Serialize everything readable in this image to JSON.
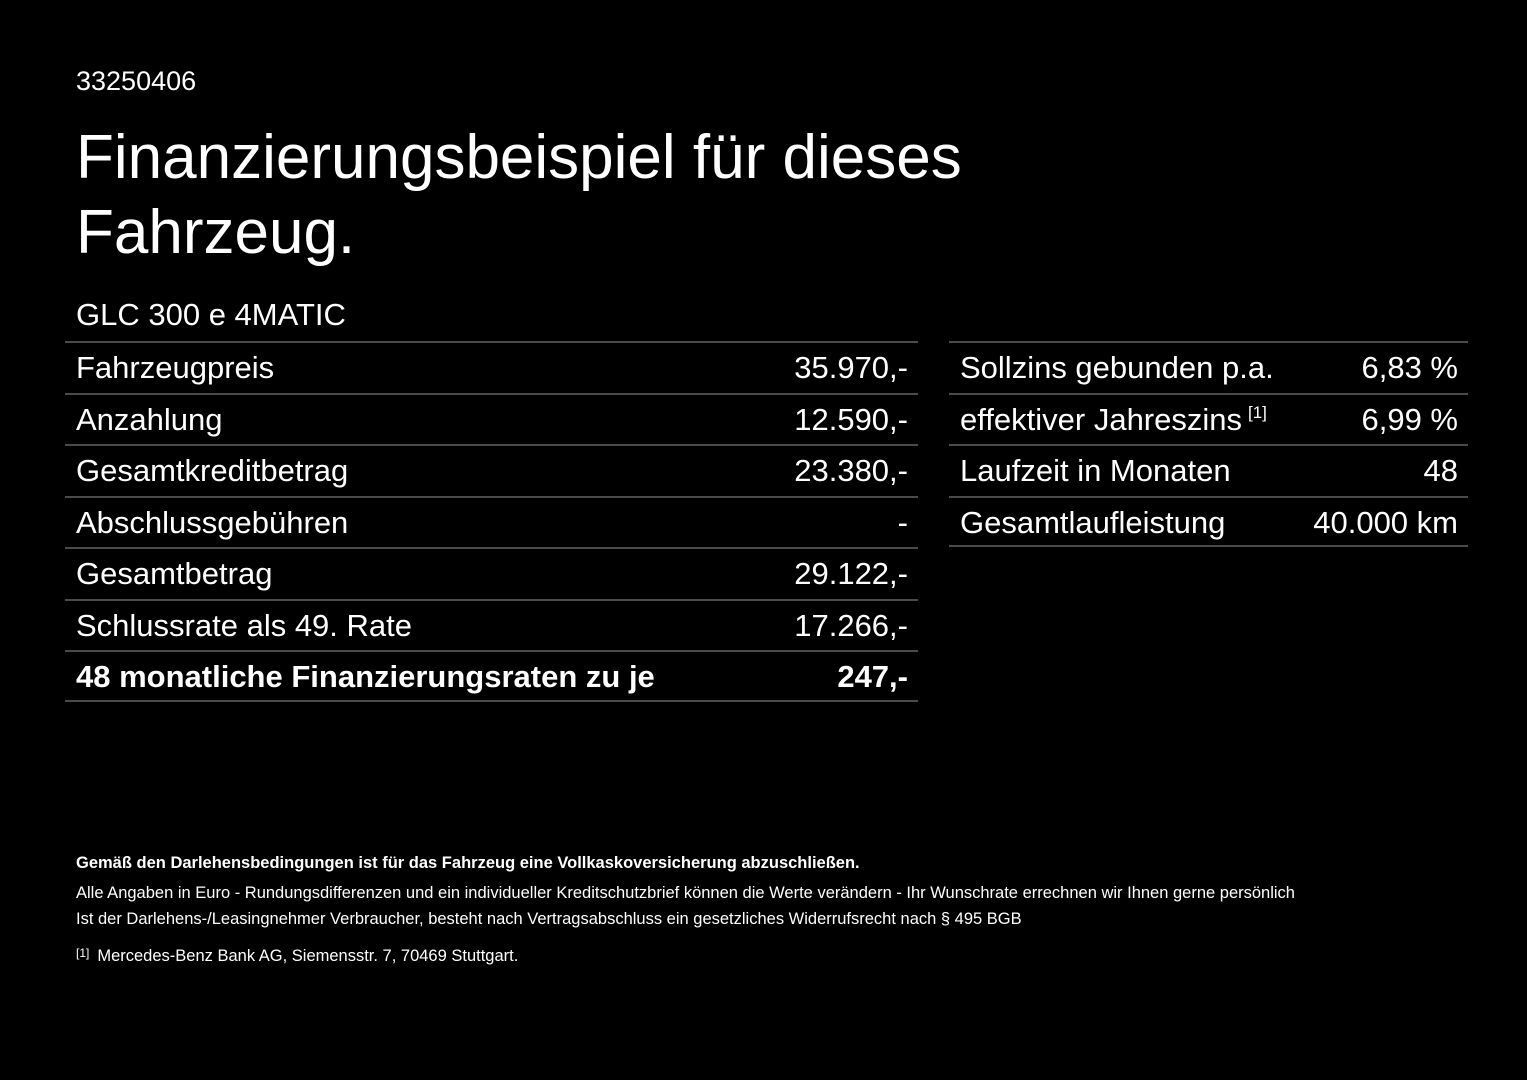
{
  "offer_id": "33250406",
  "title": "Finanzierungsbeispiel für dieses Fahrzeug.",
  "model": "GLC 300 e 4MATIC",
  "left_table": [
    {
      "label": "Fahrzeugpreis",
      "value": "35.970,-"
    },
    {
      "label": "Anzahlung",
      "value": "12.590,-"
    },
    {
      "label": "Gesamtkreditbetrag",
      "value": "23.380,-"
    },
    {
      "label": "Abschlussgebühren",
      "value": "-"
    },
    {
      "label": "Gesamtbetrag",
      "value": "29.122,-"
    },
    {
      "label": "Schlussrate als 49. Rate",
      "value": "17.266,-"
    },
    {
      "label": "48 monatliche Finanzierungsraten zu je",
      "value": "247,-"
    }
  ],
  "right_table": [
    {
      "label": "Sollzins gebunden p.a.",
      "value": "6,83 %"
    },
    {
      "label": "effektiver Jahreszins",
      "footnote": "[1]",
      "value": "6,99 %"
    },
    {
      "label": "Laufzeit in Monaten",
      "value": "48"
    },
    {
      "label": "Gesamtlaufleistung",
      "value": "40.000 km"
    }
  ],
  "footer": {
    "insurance_note": "Gemäß den Darlehensbedingungen ist für das Fahrzeug eine Vollkaskoversicherung abzuschließen.",
    "euro_note": "Alle Angaben in Euro - Rundungsdifferenzen und ein individueller Kreditschutzbrief können die Werte verändern - Ihr Wunschrate errechnen wir Ihnen gerne persönlich",
    "withdrawal_note": "Ist der Darlehens-/Leasingnehmer Verbraucher, besteht nach Vertragsabschluss ein gesetzliches Widerrufsrecht nach § 495 BGB",
    "footnote_marker": "[1]",
    "footnote_text": "Mercedes-Benz Bank AG, Siemensstr. 7, 70469 Stuttgart."
  }
}
